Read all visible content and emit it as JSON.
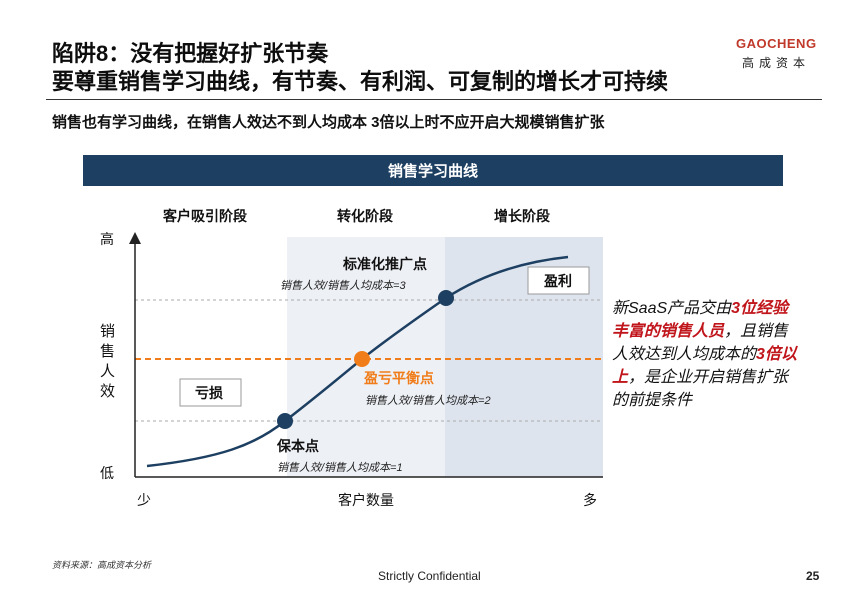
{
  "header": {
    "title_line1": "陷阱8：没有把握好扩张节奏",
    "title_line2": "要尊重销售学习曲线，有节奏、有利润、可复制的增长才可持续",
    "logo_en": "GAOCHENG",
    "logo_cn": "高成资本"
  },
  "subtitle": "销售也有学习曲线，在销售人效达不到人均成本 3倍以上时不应开启大规模销售扩张",
  "banner": "销售学习曲线",
  "stages": [
    "客户吸引阶段",
    "转化阶段",
    "增长阶段"
  ],
  "axes": {
    "y_high": "高",
    "y_label": [
      "销",
      "售",
      "人",
      "效"
    ],
    "y_low": "低",
    "x_low": "少",
    "x_label": "客户数量",
    "x_high": "多"
  },
  "points": {
    "breakeven": {
      "title": "保本点",
      "desc": "销售人效/销售人均成本=1"
    },
    "profit_balance": {
      "title": "盈亏平衡点",
      "desc": "销售人效/销售人均成本=2"
    },
    "standard": {
      "title": "标准化推广点",
      "desc": "销售人效/销售人均成本=3"
    }
  },
  "labels": {
    "loss": "亏损",
    "profit": "盈利"
  },
  "side_note": {
    "p1": "新SaaS产品交由",
    "h1": "3位经验丰富的销售人员",
    "p2": "，且销售人效达到人均成本的",
    "h2": "3倍以上",
    "p3": "，是企业开启销售扩张的前提条件"
  },
  "colors": {
    "navy": "#1d3f61",
    "orange": "#f07d1a",
    "red": "#c0151b",
    "zone_mid": "#edf0f5",
    "zone_right": "#dde4ee"
  },
  "footer": {
    "source": "资料来源：高成资本分析",
    "confidential": "Strictly Confidential",
    "page": "25"
  }
}
